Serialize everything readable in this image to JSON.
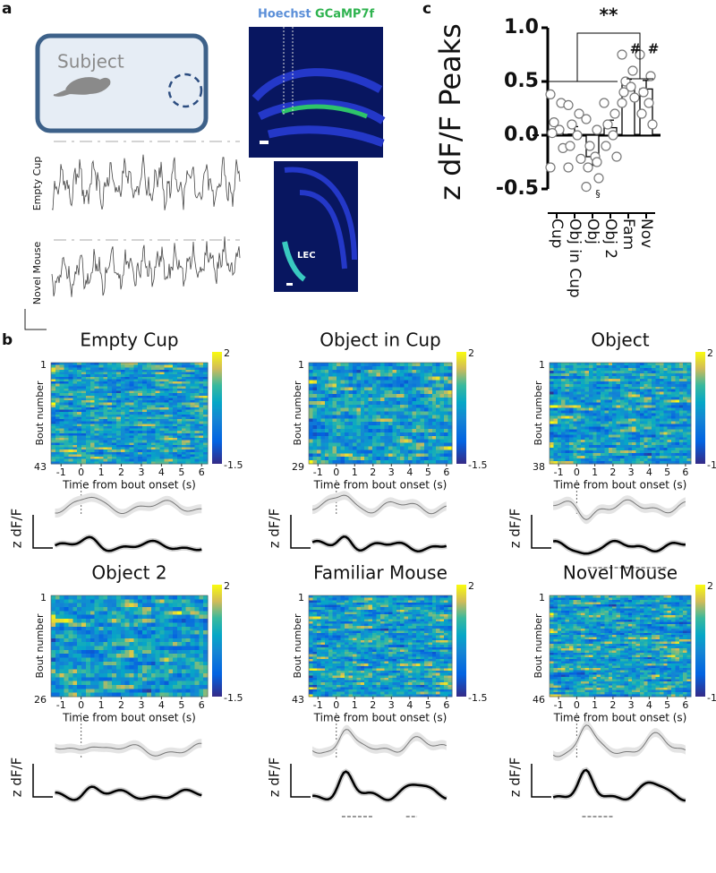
{
  "panel_labels": {
    "a": "a",
    "b": "b",
    "c": "c"
  },
  "panel_a": {
    "arena_label": "Subject",
    "stains": [
      "Hoechst",
      "GCaMP7f"
    ],
    "region_label": "LEC",
    "traces": [
      "Empty Cup",
      "Novel Mouse"
    ]
  },
  "panel_b": {
    "x_label": "Time from bout onset (s)",
    "y_label": "Bout number",
    "trace_label": "z dF/F",
    "xlim": [
      -1.5,
      6.3
    ],
    "xticks": [
      -1,
      0,
      1,
      2,
      3,
      4,
      5,
      6
    ],
    "clim": [
      -1.5,
      2
    ],
    "cticks": [
      2,
      -1.5
    ],
    "first_bout": 1,
    "heatmaps": [
      {
        "title": "Empty Cup",
        "bouts": 43
      },
      {
        "title": "Object in Cup",
        "bouts": 29
      },
      {
        "title": "Object",
        "bouts": 38
      },
      {
        "title": "Object 2",
        "bouts": 26
      },
      {
        "title": "Familiar Mouse",
        "bouts": 43
      },
      {
        "title": "Novel Mouse",
        "bouts": 46
      }
    ]
  },
  "chart_data": {
    "type": "bar",
    "y_label": "z dF/F Peaks",
    "categories": [
      "Cup",
      "Obj in Cup",
      "Obj",
      "Obj 2",
      "Fam",
      "Nov"
    ],
    "values": [
      0.03,
      0.01,
      -0.2,
      0.07,
      0.47,
      0.43
    ],
    "errors": [
      0.06,
      0.07,
      0.08,
      0.07,
      0.05,
      0.08
    ],
    "points": [
      [
        0.38,
        0.3,
        0.12,
        0.05,
        0.02,
        -0.12,
        -0.3
      ],
      [
        0.28,
        0.2,
        0.1,
        0.0,
        -0.1,
        -0.22,
        -0.3
      ],
      [
        0.15,
        0.05,
        -0.1,
        -0.2,
        -0.3,
        -0.4,
        -0.48,
        -0.25
      ],
      [
        0.3,
        0.2,
        0.1,
        0.0,
        -0.1,
        -0.2
      ],
      [
        0.75,
        0.6,
        0.5,
        0.45,
        0.4,
        0.35,
        0.3
      ],
      [
        0.75,
        0.55,
        0.4,
        0.3,
        0.2,
        0.1
      ]
    ],
    "ylim": [
      -0.7,
      1.05
    ],
    "yticks": [
      {
        "value": -0.5,
        "label": "-0.5"
      },
      {
        "value": 0,
        "label": "0.0"
      },
      {
        "value": 0.5,
        "label": "0.5"
      },
      {
        "value": 1,
        "label": "1.0"
      }
    ],
    "significance": "**",
    "hash_marks": [
      "#",
      "#"
    ],
    "section_mark": "§"
  }
}
